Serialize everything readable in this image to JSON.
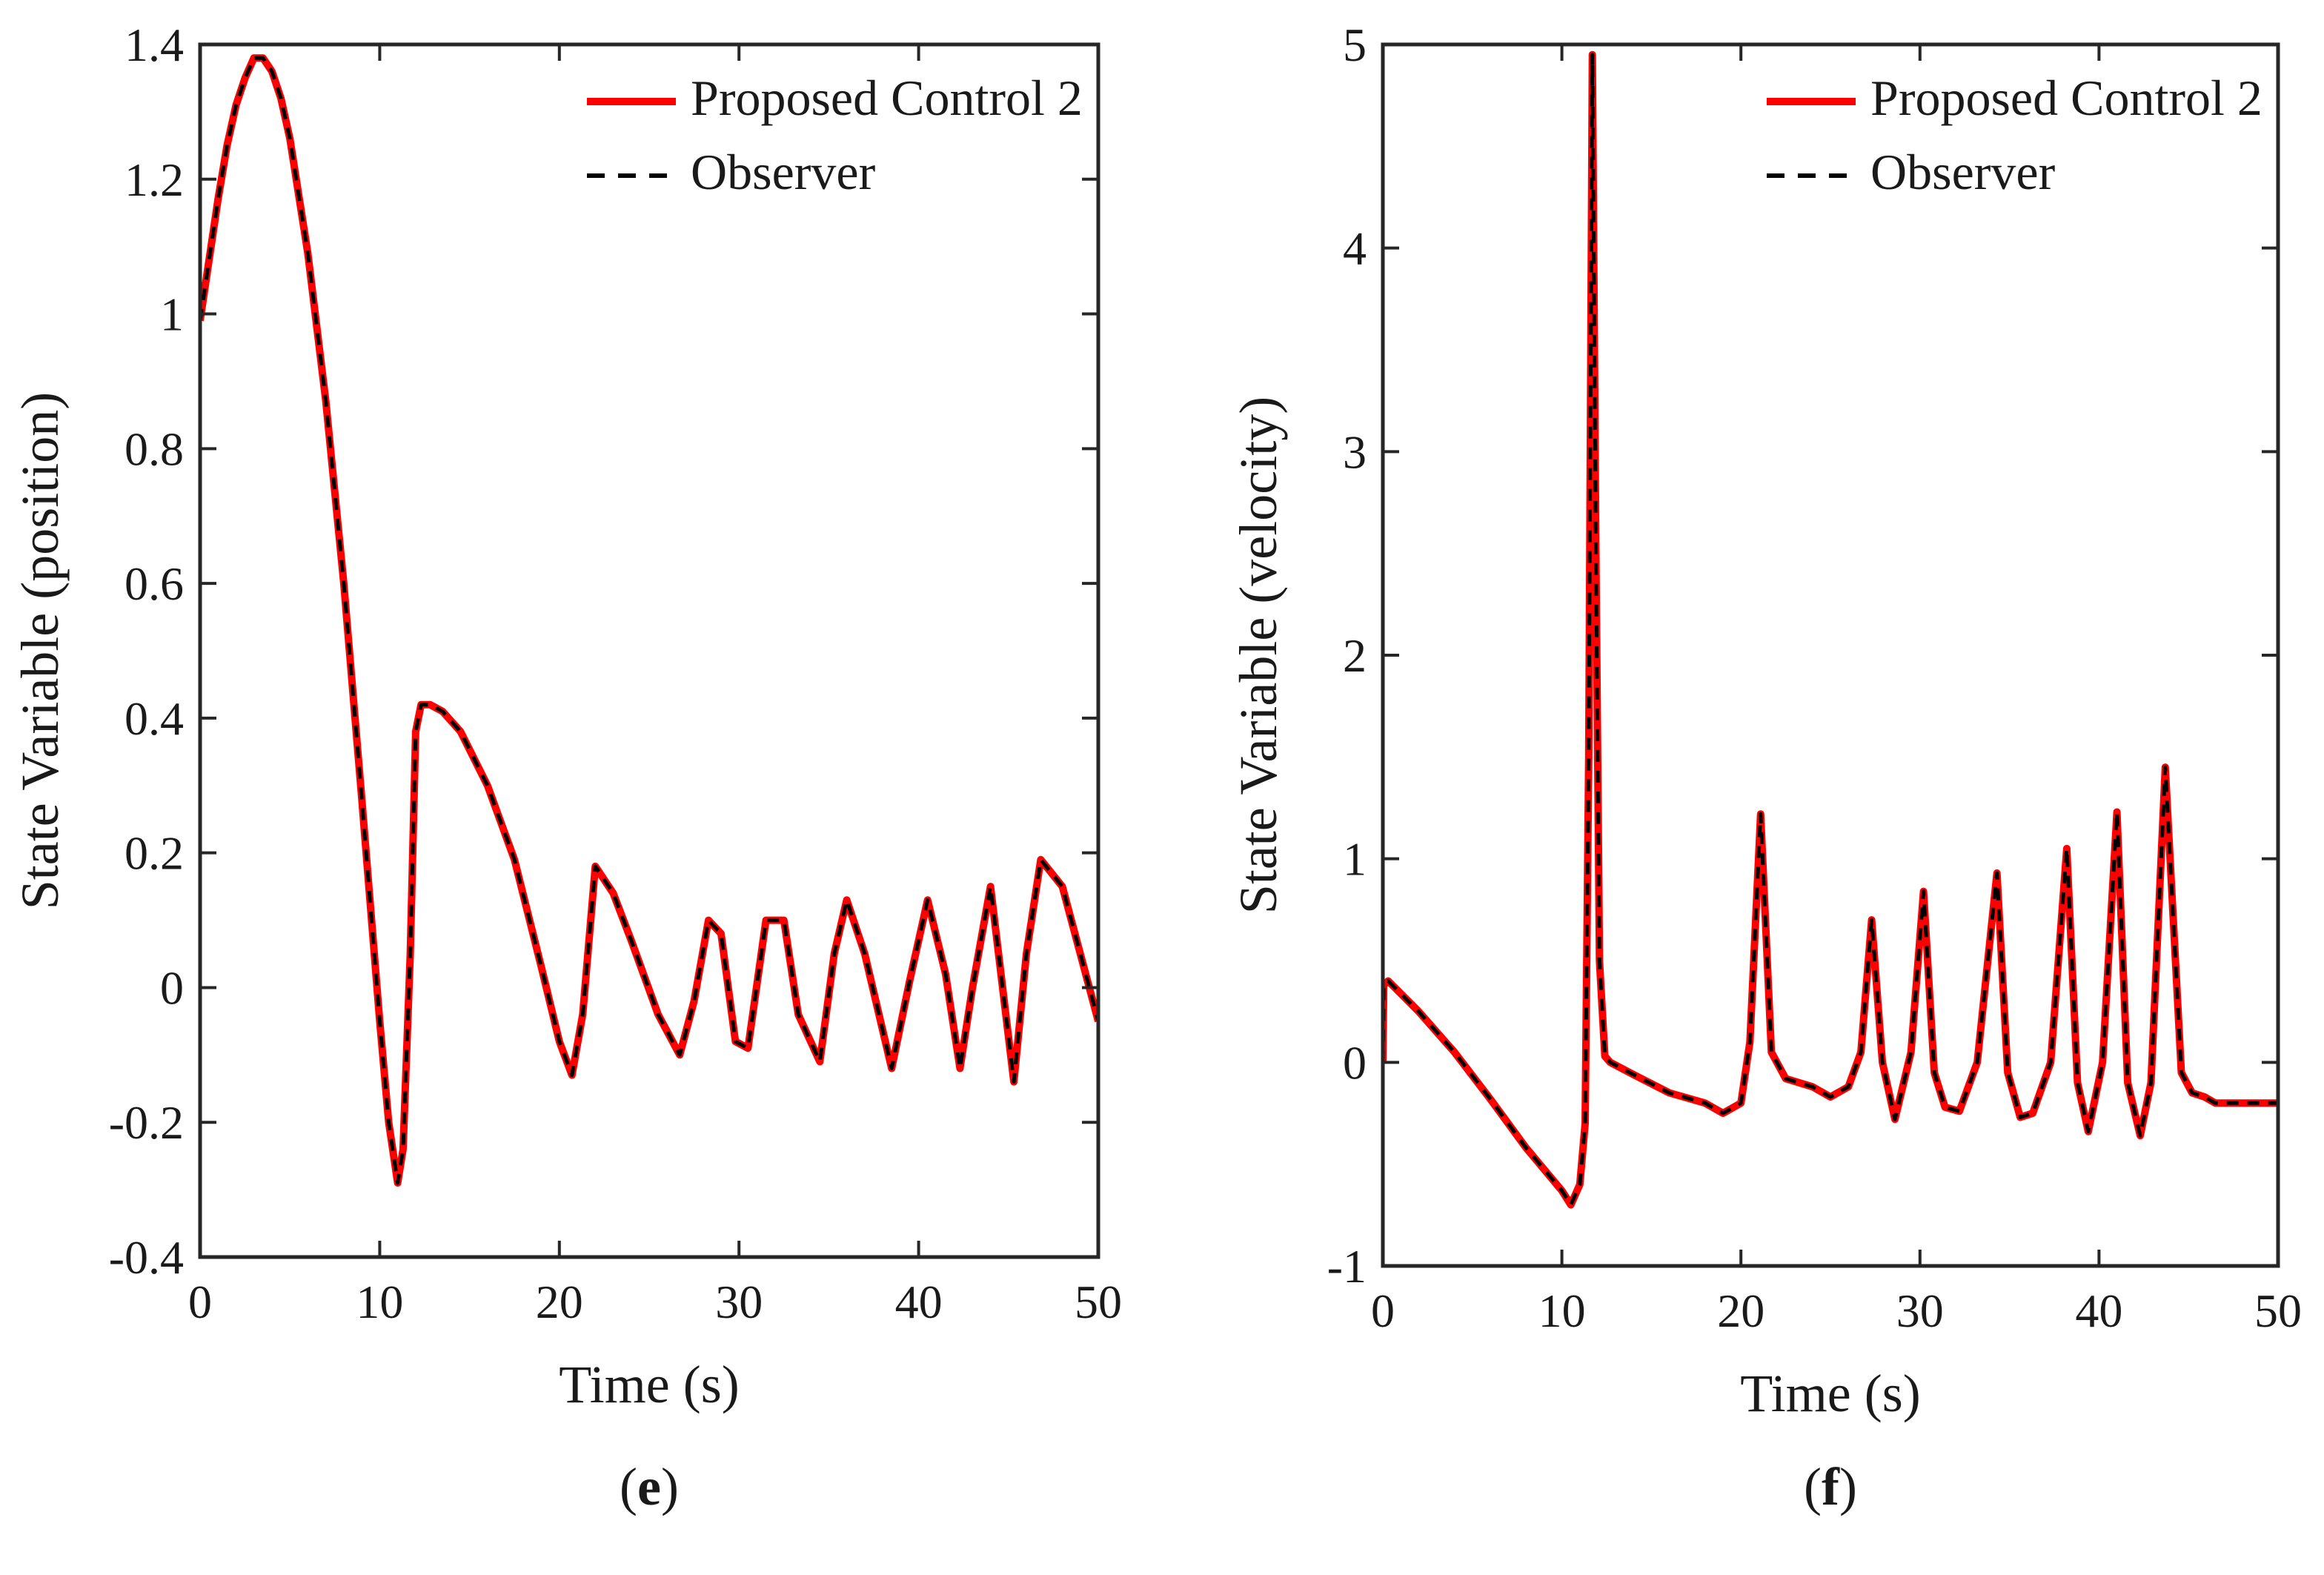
{
  "colors": {
    "proposed": "#ff0000",
    "observer": "#000000",
    "axes": "#262626"
  },
  "chart_data": [
    {
      "type": "line",
      "panel": "(e)",
      "panel_letter": "e",
      "xlabel": "Time (s)",
      "ylabel": "State Variable (position)",
      "xlim": [
        0,
        50
      ],
      "ylim": [
        -0.4,
        1.4
      ],
      "xticks": [
        0,
        10,
        20,
        30,
        40,
        50
      ],
      "xtick_labels": [
        "0",
        "10",
        "20",
        "30",
        "40",
        "50"
      ],
      "yticks": [
        -0.4,
        -0.2,
        0,
        0.2,
        0.4,
        0.6,
        0.8,
        1,
        1.2,
        1.4
      ],
      "ytick_labels": [
        "-0.4",
        "-0.2",
        "0",
        "0.2",
        "0.4",
        "0.6",
        "0.8",
        "1",
        "1.2",
        "1.4"
      ],
      "legend": {
        "location": "top-right",
        "entries": [
          "Proposed Control 2",
          "Observer"
        ]
      },
      "series": [
        {
          "name": "Proposed Control 2",
          "style": "solid",
          "x": [
            0,
            0.5,
            1,
            1.5,
            2,
            2.5,
            3,
            3.5,
            4,
            4.5,
            5,
            6,
            7,
            8,
            9,
            10,
            10.5,
            11,
            11.3,
            11.7,
            12,
            12.3,
            12.8,
            13.5,
            14.5,
            16,
            17.5,
            19,
            20,
            20.7,
            21.3,
            22,
            23,
            24,
            25.5,
            26.7,
            27.5,
            28.3,
            29,
            29.8,
            30.5,
            31.5,
            32.5,
            33.3,
            34.5,
            35.3,
            36,
            37,
            38.5,
            39.5,
            40.5,
            41.5,
            42.3,
            43,
            44,
            45.3,
            46,
            46.8,
            48,
            49,
            50
          ],
          "y": [
            0.99,
            1.08,
            1.17,
            1.25,
            1.31,
            1.35,
            1.38,
            1.38,
            1.36,
            1.32,
            1.26,
            1.09,
            0.87,
            0.6,
            0.28,
            -0.05,
            -0.2,
            -0.29,
            -0.24,
            0.05,
            0.38,
            0.42,
            0.42,
            0.41,
            0.38,
            0.3,
            0.19,
            0.03,
            -0.08,
            -0.13,
            -0.04,
            0.18,
            0.14,
            0.07,
            -0.04,
            -0.1,
            -0.02,
            0.1,
            0.08,
            -0.08,
            -0.09,
            0.1,
            0.1,
            -0.04,
            -0.11,
            0.05,
            0.13,
            0.05,
            -0.12,
            0.01,
            0.13,
            0.02,
            -0.12,
            0.0,
            0.15,
            -0.14,
            0.05,
            0.19,
            0.15,
            0.05,
            -0.05
          ]
        },
        {
          "name": "Observer",
          "style": "dashed",
          "x": [
            0,
            0.5,
            1,
            1.5,
            2,
            2.5,
            3,
            3.5,
            4,
            4.5,
            5,
            6,
            7,
            8,
            9,
            10,
            10.5,
            11,
            11.3,
            11.7,
            12,
            12.3,
            12.8,
            13.5,
            14.5,
            16,
            17.5,
            19,
            20,
            20.7,
            21.3,
            22,
            23,
            24,
            25.5,
            26.7,
            27.5,
            28.3,
            29,
            29.8,
            30.5,
            31.5,
            32.5,
            33.3,
            34.5,
            35.3,
            36,
            37,
            38.5,
            39.5,
            40.5,
            41.5,
            42.3,
            43,
            44,
            45.3,
            46,
            46.8,
            48,
            49,
            50
          ],
          "y": [
            0.99,
            1.08,
            1.17,
            1.25,
            1.31,
            1.35,
            1.38,
            1.38,
            1.36,
            1.32,
            1.26,
            1.09,
            0.87,
            0.6,
            0.28,
            -0.05,
            -0.2,
            -0.29,
            -0.24,
            0.05,
            0.38,
            0.42,
            0.42,
            0.41,
            0.38,
            0.3,
            0.19,
            0.03,
            -0.08,
            -0.13,
            -0.04,
            0.18,
            0.14,
            0.07,
            -0.04,
            -0.1,
            -0.02,
            0.1,
            0.08,
            -0.08,
            -0.09,
            0.1,
            0.1,
            -0.04,
            -0.11,
            0.05,
            0.13,
            0.05,
            -0.12,
            0.01,
            0.13,
            0.02,
            -0.12,
            0.0,
            0.15,
            -0.14,
            0.05,
            0.19,
            0.15,
            0.05,
            -0.05
          ]
        }
      ]
    },
    {
      "type": "line",
      "panel": "(f)",
      "panel_letter": "f",
      "xlabel": "Time (s)",
      "ylabel": "State Variable (velocity)",
      "xlim": [
        0,
        50
      ],
      "ylim": [
        -1,
        5
      ],
      "xticks": [
        0,
        10,
        20,
        30,
        40,
        50
      ],
      "xtick_labels": [
        "0",
        "10",
        "20",
        "30",
        "40",
        "50"
      ],
      "yticks": [
        -1,
        0,
        1,
        2,
        3,
        4,
        5
      ],
      "ytick_labels": [
        "-1",
        "0",
        "1",
        "2",
        "3",
        "4",
        "5"
      ],
      "legend": {
        "location": "top-right",
        "entries": [
          "Proposed Control 2",
          "Observer"
        ]
      },
      "series": [
        {
          "name": "Proposed Control 2",
          "style": "solid",
          "x": [
            0,
            0.05,
            0.3,
            2,
            4,
            6,
            8,
            10,
            10.5,
            11,
            11.3,
            11.5,
            11.7,
            11.9,
            12.1,
            12.4,
            12.7,
            14,
            16,
            18,
            19,
            20,
            20.5,
            21.1,
            21.7,
            22.5,
            24,
            25,
            26,
            26.7,
            27.3,
            27.9,
            28.6,
            29.5,
            30.2,
            30.8,
            31.4,
            32.2,
            33.2,
            34.3,
            34.9,
            35.6,
            36.3,
            37.3,
            38.2,
            38.8,
            39.4,
            40.2,
            41,
            41.6,
            42.3,
            42.9,
            43.7,
            44.6,
            45.2,
            45.9,
            46.5,
            47.5,
            48.5,
            50
          ],
          "y": [
            0,
            0.38,
            0.4,
            0.25,
            0.05,
            -0.18,
            -0.42,
            -0.63,
            -0.7,
            -0.6,
            -0.3,
            1.5,
            4.95,
            2.5,
            0.5,
            0.03,
            0.0,
            -0.06,
            -0.15,
            -0.2,
            -0.25,
            -0.2,
            0.1,
            1.22,
            0.05,
            -0.08,
            -0.12,
            -0.17,
            -0.12,
            0.05,
            0.7,
            0.0,
            -0.28,
            0.05,
            0.84,
            -0.05,
            -0.22,
            -0.24,
            0.0,
            0.93,
            -0.05,
            -0.27,
            -0.25,
            0.0,
            1.05,
            -0.1,
            -0.34,
            0.0,
            1.23,
            -0.1,
            -0.36,
            -0.1,
            1.45,
            -0.05,
            -0.15,
            -0.17,
            -0.2,
            -0.2,
            -0.2,
            -0.2
          ]
        },
        {
          "name": "Observer",
          "style": "dashed",
          "x": [
            0,
            0.05,
            0.3,
            2,
            4,
            6,
            8,
            10,
            10.5,
            11,
            11.3,
            11.5,
            11.7,
            11.9,
            12.1,
            12.4,
            12.7,
            14,
            16,
            18,
            19,
            20,
            20.5,
            21.1,
            21.7,
            22.5,
            24,
            25,
            26,
            26.7,
            27.3,
            27.9,
            28.6,
            29.5,
            30.2,
            30.8,
            31.4,
            32.2,
            33.2,
            34.3,
            34.9,
            35.6,
            36.3,
            37.3,
            38.2,
            38.8,
            39.4,
            40.2,
            41,
            41.6,
            42.3,
            42.9,
            43.7,
            44.6,
            45.2,
            45.9,
            46.5,
            47.5,
            48.5,
            50
          ],
          "y": [
            0,
            0.38,
            0.4,
            0.25,
            0.05,
            -0.18,
            -0.42,
            -0.63,
            -0.7,
            -0.6,
            -0.3,
            1.5,
            4.95,
            2.5,
            0.5,
            0.03,
            0.0,
            -0.06,
            -0.15,
            -0.2,
            -0.25,
            -0.2,
            0.1,
            1.22,
            0.05,
            -0.08,
            -0.12,
            -0.17,
            -0.12,
            0.05,
            0.7,
            0.0,
            -0.28,
            0.05,
            0.84,
            -0.05,
            -0.22,
            -0.24,
            0.0,
            0.93,
            -0.05,
            -0.27,
            -0.25,
            0.0,
            1.05,
            -0.1,
            -0.34,
            0.0,
            1.23,
            -0.1,
            -0.36,
            -0.1,
            1.45,
            -0.05,
            -0.15,
            -0.17,
            -0.2,
            -0.2,
            -0.2,
            -0.2
          ]
        }
      ]
    }
  ]
}
